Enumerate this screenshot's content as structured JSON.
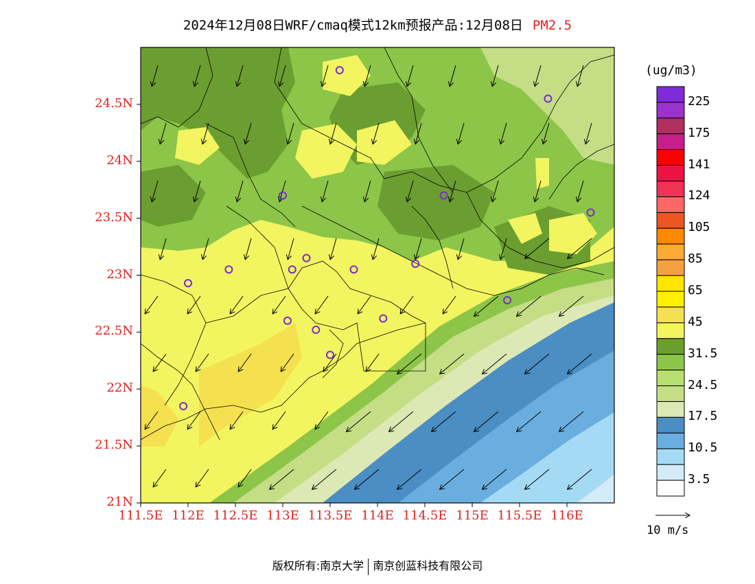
{
  "header": {
    "title": "2024年12月08日WRF/cmaq模式12km预报产品:12月08日",
    "pollutant": "PM2.5"
  },
  "legend": {
    "unit": "(ug/m3)",
    "labels": [
      "225",
      "175",
      "141",
      "124",
      "105",
      "85",
      "65",
      "45",
      "31.5",
      "24.5",
      "17.5",
      "10.5",
      "3.5"
    ],
    "colors": [
      "#7f2ad8",
      "#9a32cd",
      "#b03060",
      "#c81e8c",
      "#ff0000",
      "#ee1144",
      "#ee3355",
      "#ff6666",
      "#ee5522",
      "#ff8800",
      "#ffaa33",
      "#f5a040",
      "#ffe400",
      "#fff000",
      "#f5e050",
      "#f2f560",
      "#6b9e30",
      "#8cc548",
      "#b8df70",
      "#c5dd85",
      "#dde9b5",
      "#4a8ec4",
      "#6aaee0",
      "#a5daf5",
      "#d3ecf8",
      "#ffffff"
    ]
  },
  "wind_scale": {
    "label": "10 m/s"
  },
  "axes": {
    "lat_ticks": [
      "24.5N",
      "24N",
      "23.5N",
      "23N",
      "22.5N",
      "22N",
      "21.5N",
      "21N"
    ],
    "lon_ticks": [
      "111.5E",
      "112E",
      "112.5E",
      "113E",
      "113.5E",
      "114E",
      "114.5E",
      "115E",
      "115.5E",
      "116E"
    ],
    "lat_range": [
      21,
      25
    ],
    "lon_range": [
      111.5,
      116.5
    ]
  },
  "footer": {
    "left": "版权所有:南京大学",
    "right": "南京创蓝科技有限公司"
  },
  "colors": {
    "sea_deep": "#4a8ec4",
    "sea_mid": "#6aaee0",
    "sea_light": "#a5daf5",
    "land_yellow": "#f2f560",
    "land_green": "#8cc548",
    "land_darkgreen": "#6b9e30",
    "land_lightgreen": "#c5dd85",
    "station_marker": "#7a2bd0",
    "tick_label": "#e0201e"
  }
}
